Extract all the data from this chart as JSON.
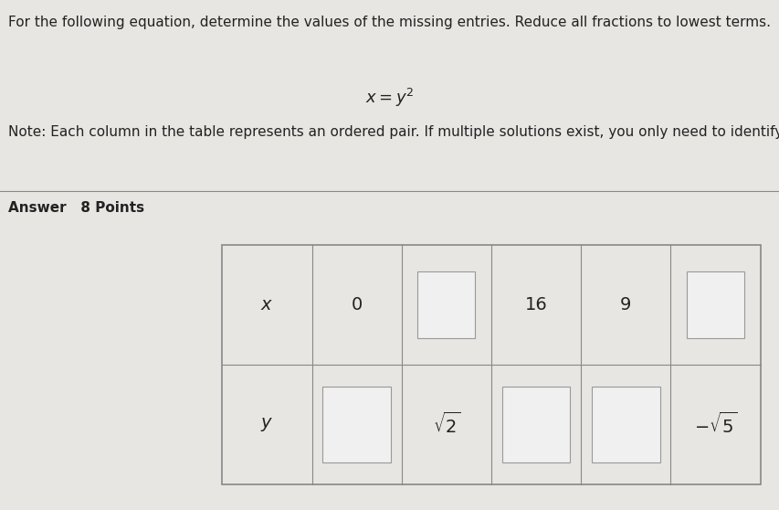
{
  "bg_color": "#e8e6e3",
  "header_text": "For the following equation, determine the values of the missing entries. Reduce all fractions to lowest terms.",
  "note_text": "Note: Each column in the table represents an ordered pair. If multiple solutions exist, you only need to identify one.",
  "answer_label": "Answer   8 Points",
  "row_labels": [
    "x",
    "y"
  ],
  "n_cols": 6,
  "n_rows": 2,
  "tl": 0.285,
  "tr": 0.975,
  "tt": 0.52,
  "tb": 0.05
}
